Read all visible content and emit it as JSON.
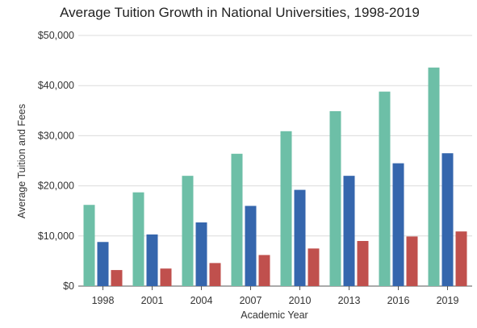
{
  "chart_data": {
    "type": "bar",
    "title": "Average Tuition Growth in National Universities, 1998-2019",
    "xlabel": "Academic Year",
    "ylabel": "Average Tuition and Fees",
    "categories": [
      "1998",
      "2001",
      "2004",
      "2007",
      "2010",
      "2013",
      "2016",
      "2019"
    ],
    "ylim": [
      0,
      50000
    ],
    "yticks": [
      0,
      10000,
      20000,
      30000,
      40000,
      50000
    ],
    "ytick_labels": [
      "$0",
      "$10,000",
      "$20,000",
      "$30,000",
      "$40,000",
      "$50,000"
    ],
    "grid": true,
    "legend": "none",
    "series": [
      {
        "values": [
          16200,
          18700,
          22000,
          26400,
          30900,
          34900,
          38800,
          43600
        ],
        "color": "#6dbfa7"
      },
      {
        "values": [
          8800,
          10300,
          12700,
          16000,
          19200,
          22000,
          24500,
          26500
        ],
        "color": "#3566ad"
      },
      {
        "values": [
          3200,
          3500,
          4600,
          6200,
          7500,
          9000,
          9900,
          10900
        ],
        "color": "#c0504d"
      }
    ]
  }
}
